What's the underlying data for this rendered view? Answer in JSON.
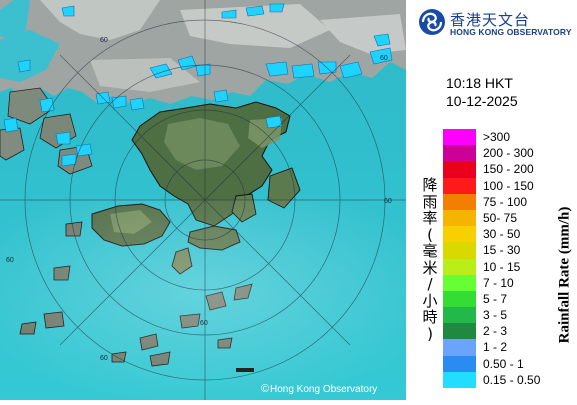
{
  "header": {
    "logo_icon": "hko-swirl-logo",
    "org_name_zh": "香港天文台",
    "org_name_en": "HONG KONG OBSERVATORY"
  },
  "timestamp": {
    "time": "10:18 HKT",
    "date": "10-12-2025"
  },
  "map": {
    "range_ring_label": "60",
    "copyright": "Hong Kong Observatory",
    "copyright_symbol": "©"
  },
  "legend": {
    "title_en": "Rainfall Rate (mm/h)",
    "title_zh": "降雨率(毫米/小時)",
    "items": [
      {
        "label": ">300",
        "color": "#ff00ff"
      },
      {
        "label": "200 - 300",
        "color": "#cc0099"
      },
      {
        "label": "150 - 200",
        "color": "#e8001e"
      },
      {
        "label": "100 - 150",
        "color": "#ff1a1a"
      },
      {
        "label": "75 - 100",
        "color": "#f27f00"
      },
      {
        "label": "50- 75",
        "color": "#f4b400"
      },
      {
        "label": "30 - 50",
        "color": "#f8d000"
      },
      {
        "label": "15 - 30",
        "color": "#d9d900"
      },
      {
        "label": "10 - 15",
        "color": "#b9ef19"
      },
      {
        "label": "7 - 10",
        "color": "#66ff33"
      },
      {
        "label": "5 - 7",
        "color": "#33dd33"
      },
      {
        "label": "3 - 5",
        "color": "#22b84a"
      },
      {
        "label": "2 - 3",
        "color": "#1f8a3f"
      },
      {
        "label": "1 - 2",
        "color": "#6aa4ff"
      },
      {
        "label": "0.50 - 1",
        "color": "#2a8cf0"
      },
      {
        "label": "0.15 - 0.50",
        "color": "#22ddff"
      }
    ]
  }
}
